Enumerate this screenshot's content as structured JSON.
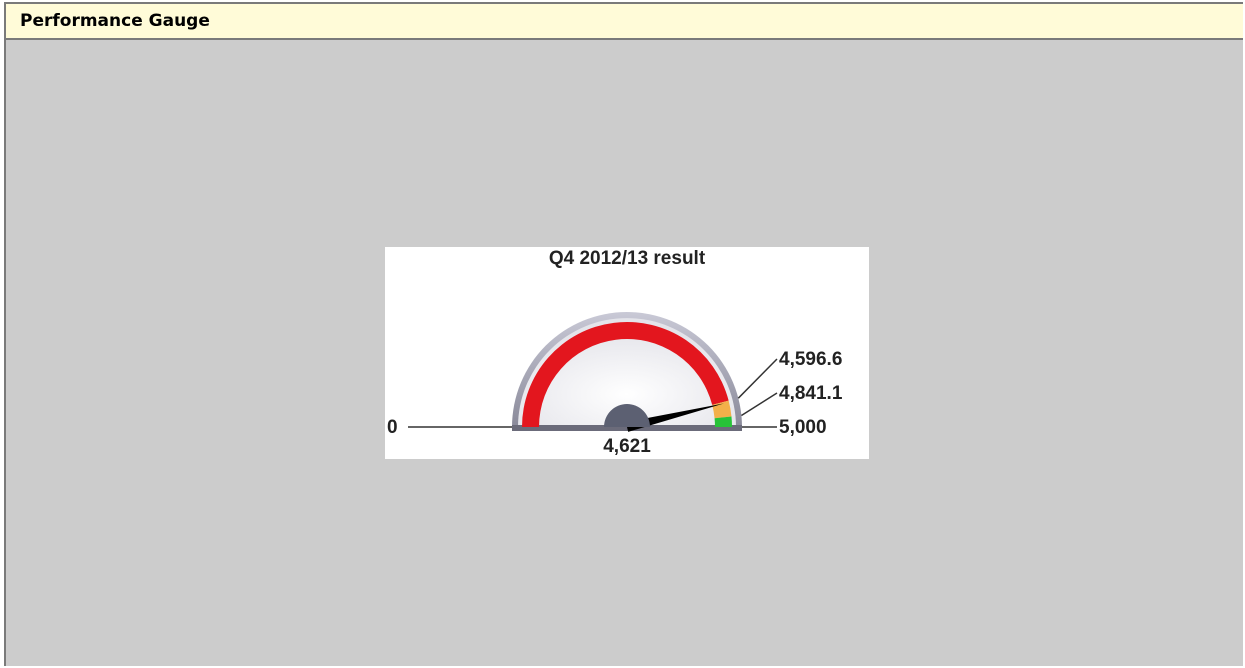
{
  "panel": {
    "title": "Performance Gauge"
  },
  "chart_data": {
    "type": "gauge",
    "title": "Q4 2012/13 result",
    "ylim": [
      0,
      5000
    ],
    "yticks": [
      0,
      {
        "value": 4596.6,
        "label": "4,596.6"
      },
      {
        "value": 4841.1,
        "label": "4,841.1"
      },
      {
        "value": 5000,
        "label": "5,000"
      }
    ],
    "band_colors": [
      "#e3161e",
      "#f3b04a",
      "#27c238"
    ],
    "value": 4621,
    "value_label": "4,621",
    "needle_color": "#000000"
  }
}
